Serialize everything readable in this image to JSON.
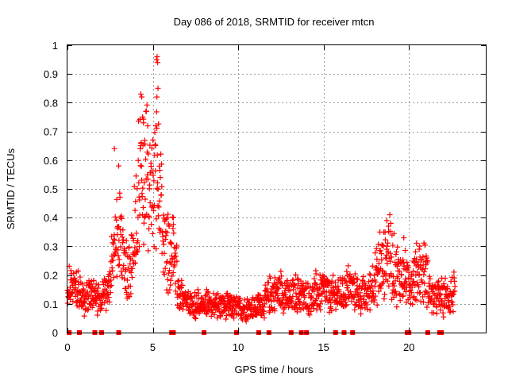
{
  "chart_data": {
    "type": "scatter",
    "title": "Day 086 of 2018, SRMTID for receiver mtcn",
    "xlabel": "GPS time / hours",
    "ylabel": "SRMTID / TECUs",
    "xlim": [
      0,
      24.5
    ],
    "ylim": [
      0,
      1
    ],
    "xticks": [
      0,
      5,
      10,
      15,
      20
    ],
    "yticks": [
      0,
      0.1,
      0.2,
      0.3,
      0.4,
      0.5,
      0.6,
      0.7,
      0.8,
      0.9,
      1
    ],
    "xtick_labels": [
      "0",
      "5",
      "10",
      "15",
      "20"
    ],
    "ytick_labels": [
      "0",
      "0.1",
      "0.2",
      "0.3",
      "0.4",
      "0.5",
      "0.6",
      "0.7",
      "0.8",
      "0.9",
      "1"
    ],
    "grid": true,
    "marker": "+",
    "series": [
      {
        "name": "SRMTID",
        "color": "#ff0000",
        "profile": [
          [
            0.0,
            0.15
          ],
          [
            0.3,
            0.16
          ],
          [
            0.6,
            0.14
          ],
          [
            1.0,
            0.11
          ],
          [
            1.5,
            0.12
          ],
          [
            2.0,
            0.11
          ],
          [
            2.3,
            0.14
          ],
          [
            2.6,
            0.22
          ],
          [
            2.9,
            0.32
          ],
          [
            3.2,
            0.28
          ],
          [
            3.5,
            0.18
          ],
          [
            3.8,
            0.24
          ],
          [
            4.1,
            0.45
          ],
          [
            4.4,
            0.55
          ],
          [
            4.7,
            0.48
          ],
          [
            5.0,
            0.52
          ],
          [
            5.3,
            0.5
          ],
          [
            5.6,
            0.32
          ],
          [
            5.9,
            0.26
          ],
          [
            6.2,
            0.3
          ],
          [
            6.5,
            0.14
          ],
          [
            7.0,
            0.1
          ],
          [
            8.0,
            0.09
          ],
          [
            9.0,
            0.09
          ],
          [
            10.0,
            0.08
          ],
          [
            11.0,
            0.08
          ],
          [
            11.5,
            0.1
          ],
          [
            12.0,
            0.13
          ],
          [
            12.5,
            0.14
          ],
          [
            13.0,
            0.11
          ],
          [
            13.5,
            0.13
          ],
          [
            14.0,
            0.12
          ],
          [
            14.5,
            0.13
          ],
          [
            15.0,
            0.14
          ],
          [
            15.5,
            0.12
          ],
          [
            16.0,
            0.13
          ],
          [
            16.5,
            0.15
          ],
          [
            17.0,
            0.13
          ],
          [
            17.5,
            0.12
          ],
          [
            18.0,
            0.18
          ],
          [
            18.5,
            0.22
          ],
          [
            18.8,
            0.27
          ],
          [
            19.2,
            0.2
          ],
          [
            19.6,
            0.19
          ],
          [
            20.0,
            0.17
          ],
          [
            20.5,
            0.2
          ],
          [
            21.0,
            0.2
          ],
          [
            21.3,
            0.12
          ],
          [
            21.8,
            0.12
          ],
          [
            22.3,
            0.12
          ],
          [
            22.7,
            0.13
          ]
        ],
        "notable_points": [
          {
            "x": 5.25,
            "y": 0.96
          },
          {
            "x": 5.22,
            "y": 0.95
          },
          {
            "x": 5.28,
            "y": 0.94
          },
          {
            "x": 5.3,
            "y": 0.85
          },
          {
            "x": 5.24,
            "y": 0.82
          },
          {
            "x": 4.3,
            "y": 0.83
          },
          {
            "x": 4.35,
            "y": 0.82
          },
          {
            "x": 4.4,
            "y": 0.75
          },
          {
            "x": 4.45,
            "y": 0.73
          },
          {
            "x": 2.75,
            "y": 0.64
          },
          {
            "x": 3.0,
            "y": 0.58
          },
          {
            "x": 18.7,
            "y": 0.39
          },
          {
            "x": 18.8,
            "y": 0.37
          },
          {
            "x": 6.2,
            "y": 0.4
          },
          {
            "x": 19.7,
            "y": 0.33
          },
          {
            "x": 20.6,
            "y": 0.29
          },
          {
            "x": 18.3,
            "y": 0.35
          }
        ],
        "zero_points_x": [
          0.1,
          0.7,
          1.6,
          2.0,
          3.0,
          6.1,
          6.2,
          8.0,
          9.9,
          11.2,
          11.8,
          13.1,
          13.7,
          14.0,
          15.7,
          16.2,
          16.7,
          19.9,
          20.0,
          21.1,
          21.8,
          21.9
        ]
      }
    ]
  }
}
